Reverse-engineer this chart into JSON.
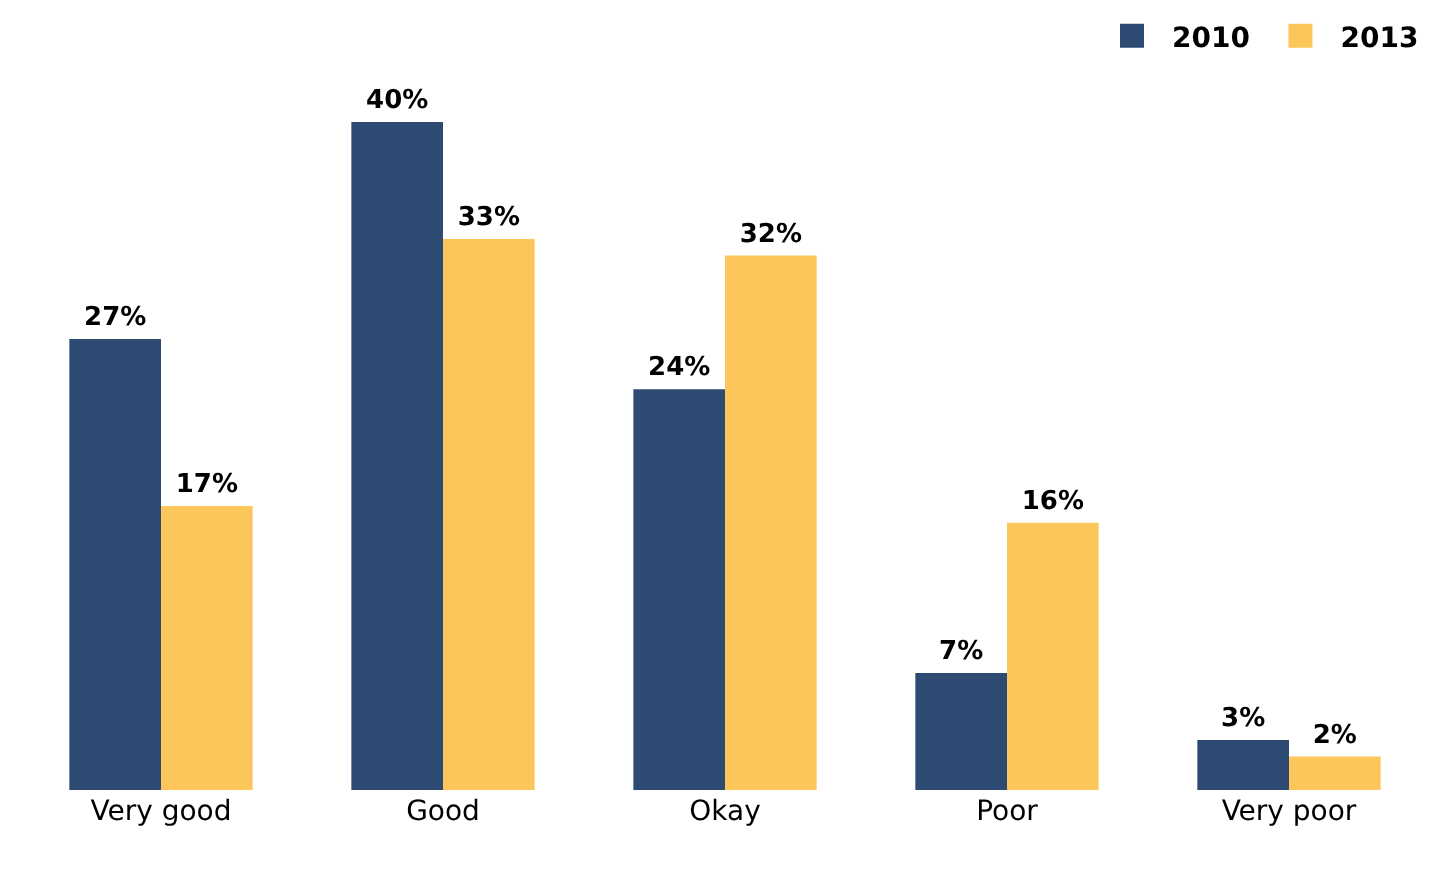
{
  "chart_data": {
    "type": "bar",
    "categories": [
      "Very good",
      "Good",
      "Okay",
      "Poor",
      "Very poor"
    ],
    "series": [
      {
        "name": "2010",
        "color": "#2c4a72",
        "values": [
          27,
          40,
          24,
          7,
          3
        ],
        "value_labels": [
          "27%",
          "40%",
          "24%",
          "7%",
          "3%"
        ]
      },
      {
        "name": "2013",
        "color": "#fcc65a",
        "values": [
          17,
          33,
          32,
          16,
          2
        ],
        "value_labels": [
          "17%",
          "33%",
          "32%",
          "16%",
          "2%"
        ]
      }
    ],
    "legend": "top right"
  }
}
